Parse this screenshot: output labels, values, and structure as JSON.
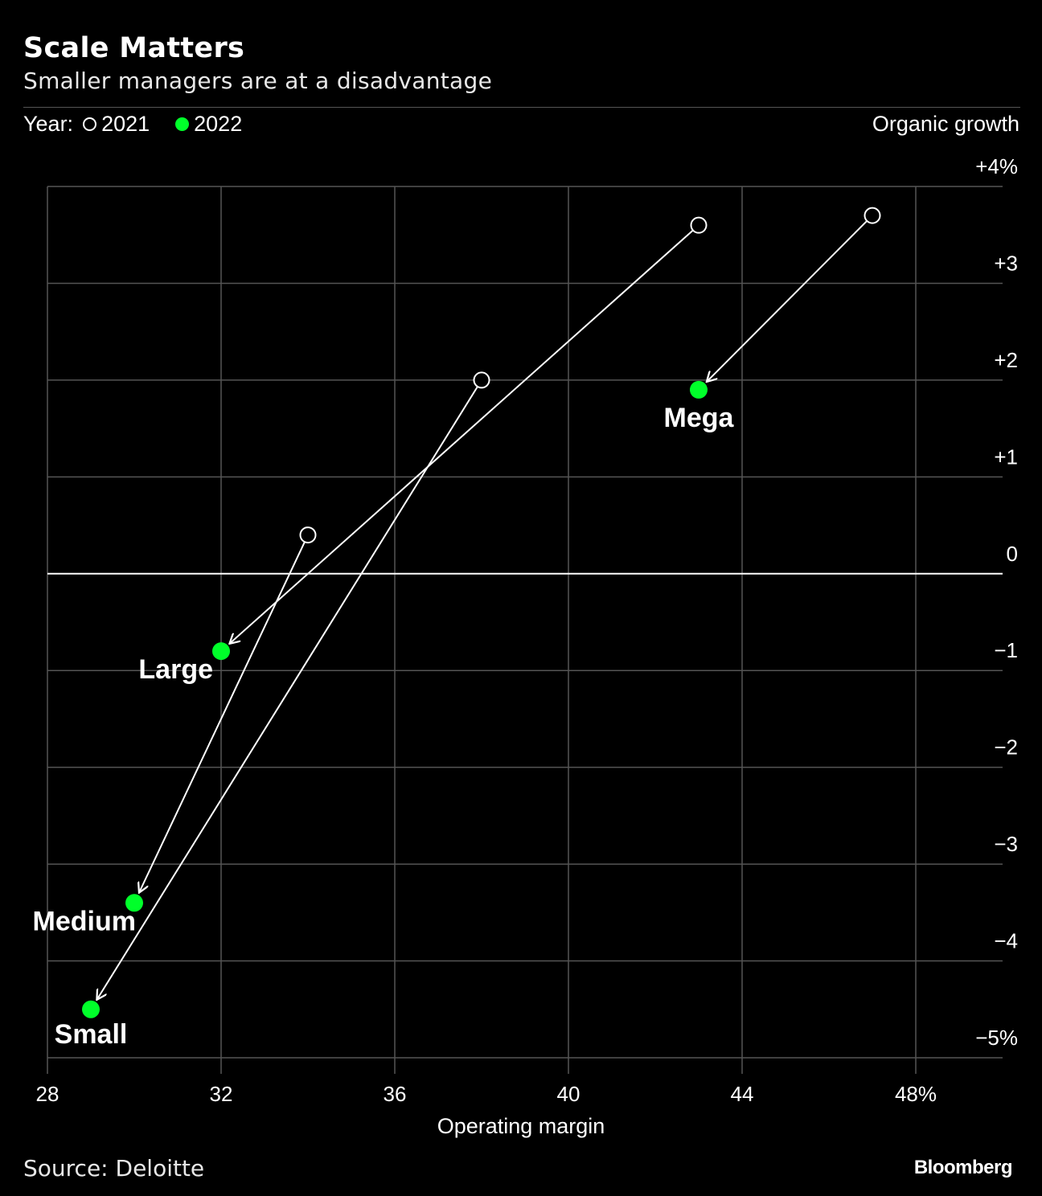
{
  "title": "Scale Matters",
  "subtitle": "Smaller managers are at a disadvantage",
  "legend": {
    "prefix": "Year:",
    "open_label": "2021",
    "filled_label": "2022"
  },
  "source": "Source: Deloitte",
  "brand": "Bloomberg",
  "colors": {
    "background": "#000000",
    "filled_point": "#00ff2a",
    "open_point": "#ffffff",
    "grid": "#555555"
  },
  "chart_data": {
    "type": "scatter",
    "xlabel": "Operating margin",
    "ylabel": "Organic growth",
    "xlim": [
      28,
      50
    ],
    "ylim": [
      -5,
      4
    ],
    "x_ticks": [
      {
        "value": 28,
        "label": "28"
      },
      {
        "value": 32,
        "label": "32"
      },
      {
        "value": 36,
        "label": "36"
      },
      {
        "value": 40,
        "label": "40"
      },
      {
        "value": 44,
        "label": "44"
      },
      {
        "value": 48,
        "label": "48%"
      }
    ],
    "y_ticks": [
      {
        "value": 4,
        "label": "+4%"
      },
      {
        "value": 3,
        "label": "+3"
      },
      {
        "value": 2,
        "label": "+2"
      },
      {
        "value": 1,
        "label": "+1"
      },
      {
        "value": 0,
        "label": "0"
      },
      {
        "value": -1,
        "label": "−1"
      },
      {
        "value": -2,
        "label": "−2"
      },
      {
        "value": -3,
        "label": "−3"
      },
      {
        "value": -4,
        "label": "−4"
      },
      {
        "value": -5,
        "label": "−5%"
      }
    ],
    "grid": true,
    "series": [
      {
        "name": "Mega",
        "x2021": 47,
        "y2021": 3.7,
        "x2022": 43,
        "y2022": 1.9
      },
      {
        "name": "Large",
        "x2021": 43,
        "y2021": 3.6,
        "x2022": 32,
        "y2022": -0.8
      },
      {
        "name": "Medium",
        "x2021": 34,
        "y2021": 0.4,
        "x2022": 30,
        "y2022": -3.4
      },
      {
        "name": "Small",
        "x2021": 38,
        "y2021": 2.0,
        "x2022": 29,
        "y2022": -4.5
      }
    ]
  }
}
